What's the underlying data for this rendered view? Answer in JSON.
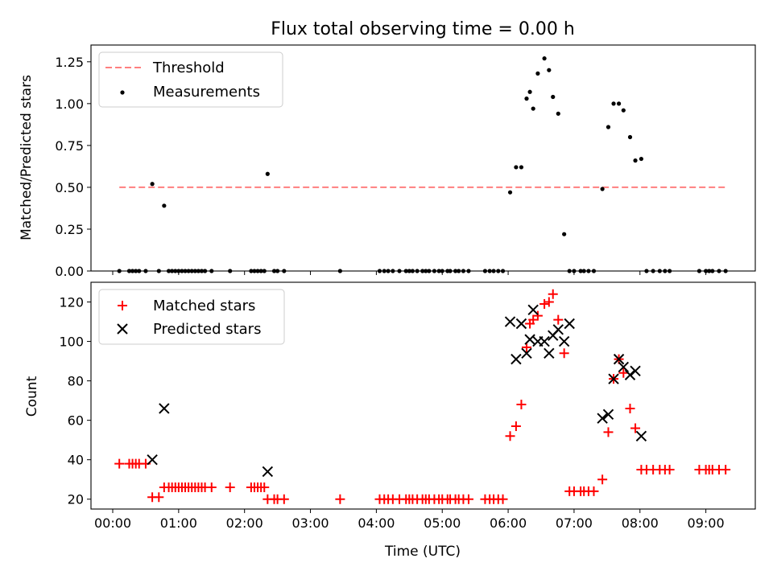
{
  "chart_data": [
    {
      "type": "scatter",
      "title": "Flux total observing time = 0.00 h",
      "xlabel": "",
      "ylabel": "Matched/Predicted stars",
      "xlim": [
        -0.33,
        9.75
      ],
      "ylim": [
        0,
        1.35
      ],
      "xticks": [
        0,
        1,
        2,
        3,
        4,
        5,
        6,
        7,
        8,
        9
      ],
      "yticks": [
        0.0,
        0.25,
        0.5,
        0.75,
        1.0,
        1.25
      ],
      "ytick_labels": [
        "0.00",
        "0.25",
        "0.50",
        "0.75",
        "1.00",
        "1.25"
      ],
      "legend": {
        "position": "upper-left",
        "entries": [
          "Threshold",
          "Measurements"
        ]
      },
      "threshold": {
        "name": "Threshold",
        "value": 0.5,
        "x": [
          0.1,
          9.3
        ],
        "color": "#ff7f7f"
      },
      "series": [
        {
          "name": "Measurements",
          "marker": "dot",
          "color": "#000000",
          "x": [
            0.1,
            0.25,
            0.3,
            0.35,
            0.4,
            0.5,
            0.6,
            0.7,
            0.78,
            0.85,
            0.9,
            0.95,
            1.0,
            1.05,
            1.1,
            1.15,
            1.2,
            1.25,
            1.3,
            1.35,
            1.4,
            1.5,
            1.78,
            2.1,
            2.15,
            2.2,
            2.25,
            2.3,
            2.35,
            2.45,
            2.5,
            2.6,
            3.45,
            4.05,
            4.12,
            4.18,
            4.25,
            4.35,
            4.45,
            4.5,
            4.55,
            4.62,
            4.7,
            4.75,
            4.8,
            4.88,
            4.95,
            5.0,
            5.08,
            5.12,
            5.2,
            5.25,
            5.32,
            5.4,
            5.65,
            5.72,
            5.78,
            5.85,
            5.92,
            6.03,
            6.12,
            6.2,
            6.28,
            6.33,
            6.38,
            6.45,
            6.55,
            6.62,
            6.68,
            6.76,
            6.85,
            6.93,
            7.0,
            7.1,
            7.15,
            7.22,
            7.3,
            7.43,
            7.52,
            7.6,
            7.68,
            7.75,
            7.85,
            7.93,
            8.02,
            8.1,
            8.2,
            8.3,
            8.38,
            8.45,
            8.9,
            9.0,
            9.05,
            9.1,
            9.2,
            9.3
          ],
          "y": [
            0,
            0,
            0,
            0,
            0,
            0,
            0.52,
            0,
            0.39,
            0,
            0,
            0,
            0,
            0,
            0,
            0,
            0,
            0,
            0,
            0,
            0,
            0,
            0,
            0,
            0,
            0,
            0,
            0,
            0.58,
            0,
            0,
            0,
            0,
            0,
            0,
            0,
            0,
            0,
            0,
            0,
            0,
            0,
            0,
            0,
            0,
            0,
            0,
            0,
            0,
            0,
            0,
            0,
            0,
            0,
            0,
            0,
            0,
            0,
            0,
            0.47,
            0.62,
            0.62,
            1.03,
            1.07,
            0.97,
            1.18,
            1.27,
            1.2,
            1.04,
            0.94,
            0.22,
            0,
            0,
            0,
            0,
            0,
            0,
            0.49,
            0.86,
            1.0,
            1.0,
            0.96,
            0.8,
            0.66,
            0.67,
            0,
            0,
            0,
            0,
            0,
            0,
            0,
            0,
            0,
            0,
            0
          ]
        }
      ]
    },
    {
      "type": "scatter",
      "title": "",
      "xlabel": "Time (UTC)",
      "ylabel": "Count",
      "xlim": [
        -0.33,
        9.75
      ],
      "ylim": [
        15,
        130
      ],
      "xticks": [
        0,
        1,
        2,
        3,
        4,
        5,
        6,
        7,
        8,
        9
      ],
      "xtick_labels": [
        "00:00",
        "01:00",
        "02:00",
        "03:00",
        "04:00",
        "05:00",
        "06:00",
        "07:00",
        "08:00",
        "09:00"
      ],
      "yticks": [
        20,
        40,
        60,
        80,
        100,
        120
      ],
      "ytick_labels": [
        "20",
        "40",
        "60",
        "80",
        "100",
        "120"
      ],
      "legend": {
        "position": "upper-left",
        "entries": [
          "Matched stars",
          "Predicted stars"
        ]
      },
      "series": [
        {
          "name": "Matched stars",
          "marker": "plus",
          "color": "#ff0000",
          "x": [
            0.1,
            0.25,
            0.3,
            0.35,
            0.4,
            0.5,
            0.6,
            0.7,
            0.78,
            0.85,
            0.9,
            0.95,
            1.0,
            1.05,
            1.1,
            1.15,
            1.2,
            1.25,
            1.3,
            1.35,
            1.4,
            1.5,
            1.78,
            2.1,
            2.15,
            2.2,
            2.25,
            2.3,
            2.35,
            2.45,
            2.5,
            2.6,
            3.45,
            4.05,
            4.12,
            4.18,
            4.25,
            4.35,
            4.45,
            4.5,
            4.55,
            4.62,
            4.7,
            4.75,
            4.8,
            4.88,
            4.95,
            5.0,
            5.08,
            5.12,
            5.2,
            5.25,
            5.32,
            5.4,
            5.65,
            5.72,
            5.78,
            5.85,
            5.92,
            6.03,
            6.12,
            6.2,
            6.28,
            6.33,
            6.38,
            6.45,
            6.55,
            6.62,
            6.68,
            6.76,
            6.85,
            6.93,
            7.0,
            7.1,
            7.15,
            7.22,
            7.3,
            7.43,
            7.52,
            7.6,
            7.68,
            7.75,
            7.85,
            7.93,
            8.02,
            8.1,
            8.2,
            8.3,
            8.38,
            8.45,
            8.9,
            9.0,
            9.05,
            9.1,
            9.2,
            9.3
          ],
          "y": [
            38,
            38,
            38,
            38,
            38,
            38,
            21,
            21,
            26,
            26,
            26,
            26,
            26,
            26,
            26,
            26,
            26,
            26,
            26,
            26,
            26,
            26,
            26,
            26,
            26,
            26,
            26,
            26,
            20,
            20,
            20,
            20,
            20,
            20,
            20,
            20,
            20,
            20,
            20,
            20,
            20,
            20,
            20,
            20,
            20,
            20,
            20,
            20,
            20,
            20,
            20,
            20,
            20,
            20,
            20,
            20,
            20,
            20,
            20,
            52,
            57,
            68,
            97,
            109,
            111,
            113,
            119,
            120,
            124,
            111,
            94,
            24,
            24,
            24,
            24,
            24,
            24,
            30,
            54,
            81,
            91,
            84,
            66,
            56,
            35,
            35,
            35,
            35,
            35,
            35,
            35,
            35,
            35,
            35,
            35,
            35
          ]
        },
        {
          "name": "Predicted stars",
          "marker": "x",
          "color": "#000000",
          "x": [
            0.6,
            0.78,
            2.35,
            6.03,
            6.12,
            6.2,
            6.28,
            6.33,
            6.38,
            6.45,
            6.55,
            6.62,
            6.68,
            6.76,
            6.85,
            6.93,
            7.43,
            7.52,
            7.6,
            7.68,
            7.75,
            7.85,
            7.93,
            8.02
          ],
          "y": [
            40,
            66,
            34,
            110,
            91,
            109,
            94,
            101,
            116,
            100,
            100,
            94,
            103,
            106,
            100,
            109,
            61,
            63,
            81,
            91,
            87,
            83,
            85,
            52
          ]
        }
      ]
    }
  ]
}
